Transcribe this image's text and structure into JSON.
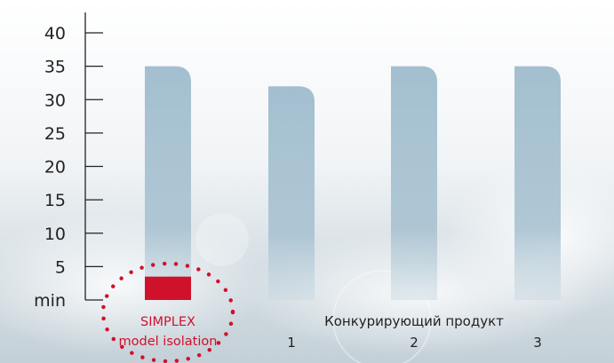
{
  "chart_data": {
    "type": "bar",
    "title": "",
    "xlabel": "",
    "ylabel": "",
    "ylim": [
      0,
      40
    ],
    "y_ticks": [
      {
        "value": 40,
        "label": "40"
      },
      {
        "value": 35,
        "label": "35"
      },
      {
        "value": 30,
        "label": "30"
      },
      {
        "value": 25,
        "label": "25"
      },
      {
        "value": 20,
        "label": "20"
      },
      {
        "value": 15,
        "label": "15"
      },
      {
        "value": 10,
        "label": "10"
      },
      {
        "value": 5,
        "label": "5"
      },
      {
        "value": 0,
        "label": "min"
      }
    ],
    "grid": false,
    "legend": "none",
    "bars": [
      {
        "label_lines": [
          "SIMPLEX",
          "model isolation"
        ],
        "value": 3.5,
        "background_value": 35,
        "highlight": true
      },
      {
        "label_lines": [
          "1"
        ],
        "value": 32,
        "highlight": false
      },
      {
        "label_lines": [
          "2"
        ],
        "value": 35,
        "highlight": false
      },
      {
        "label_lines": [
          "3"
        ],
        "value": 35,
        "highlight": false
      }
    ],
    "group_label": "Конкурирующий продукт",
    "colors": {
      "bar": "#a3bfcf",
      "highlight": "#d0112b",
      "highlight_ring": "#d0112b",
      "axis": "#222222",
      "text": "#222222"
    }
  }
}
